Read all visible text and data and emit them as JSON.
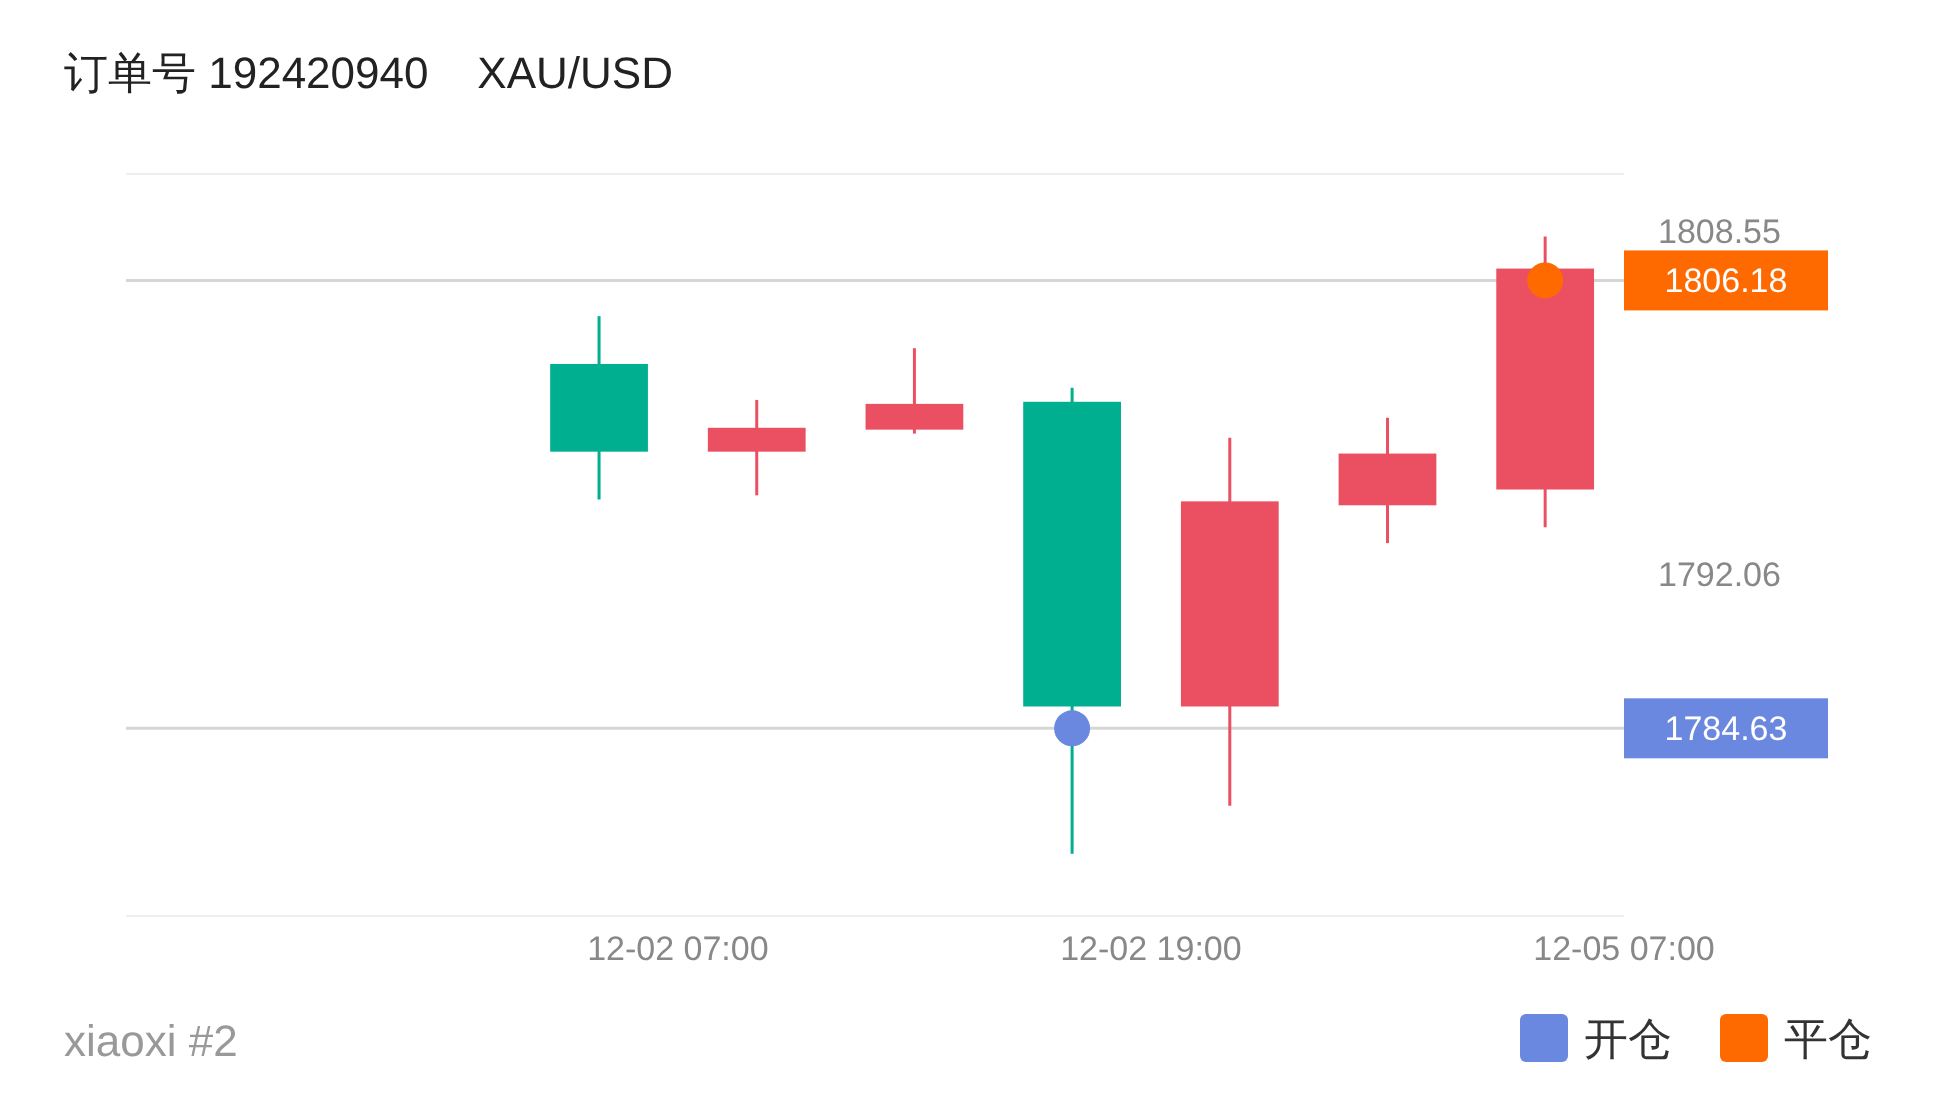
{
  "chart_data": {
    "type": "candlestick",
    "title": "订单号 192420940    XAU/USD",
    "categories": [
      null,
      null,
      null,
      null,
      null,
      null,
      null,
      "12-02 07:00",
      null,
      null,
      null,
      null,
      null,
      "12-02 19:00",
      null,
      null,
      null,
      null,
      null,
      "12-05 07:00"
    ],
    "ohlc": [
      null,
      null,
      null,
      null,
      null,
      null,
      [
        1802.16,
        1804.46,
        1795.64,
        1797.94
      ],
      null,
      [
        1797.94,
        1800.43,
        1795.84,
        1799.09
      ],
      null,
      [
        1799.0,
        1802.92,
        1798.81,
        1800.24
      ],
      null,
      [
        1800.34,
        1801.01,
        1778.6,
        1785.68
      ],
      null,
      [
        1785.68,
        1798.61,
        1780.9,
        1795.55
      ],
      null,
      [
        1795.36,
        1799.57,
        1793.54,
        1797.85
      ],
      null,
      [
        1796.12,
        1808.29,
        1794.3,
        1806.75
      ],
      null
    ],
    "colors": [
      null,
      null,
      null,
      null,
      null,
      null,
      "#00af8f",
      null,
      "#eb5062",
      null,
      "#eb5062",
      null,
      "#00af8f",
      null,
      "#eb5062",
      null,
      "#eb5062",
      null,
      "#eb5062",
      null
    ],
    "series": [
      {
        "name": "开仓",
        "type": "scatter",
        "color": "#6a88e0",
        "values": [
          null,
          null,
          null,
          null,
          null,
          null,
          null,
          null,
          null,
          null,
          null,
          null,
          1784.63,
          null,
          null,
          null,
          null,
          null,
          null,
          null
        ]
      },
      {
        "name": "平仓",
        "type": "scatter",
        "color": "#ff6a00",
        "values": [
          null,
          null,
          null,
          null,
          null,
          null,
          null,
          null,
          null,
          null,
          null,
          null,
          null,
          null,
          null,
          null,
          null,
          null,
          1806.18,
          null
        ]
      }
    ],
    "ylim": [
      1775.6,
      1811.3
    ],
    "yticks": [
      1792.06,
      1808.55
    ],
    "ref_lines": [
      {
        "axis": "y",
        "value": 1806.18,
        "label": "1806.18"
      },
      {
        "axis": "y",
        "value": 1784.63,
        "label": "1784.63"
      }
    ],
    "annotations": [
      "xiaoxi #2"
    ],
    "legend": "bottom right",
    "marker": "circle",
    "grid": false
  }
}
